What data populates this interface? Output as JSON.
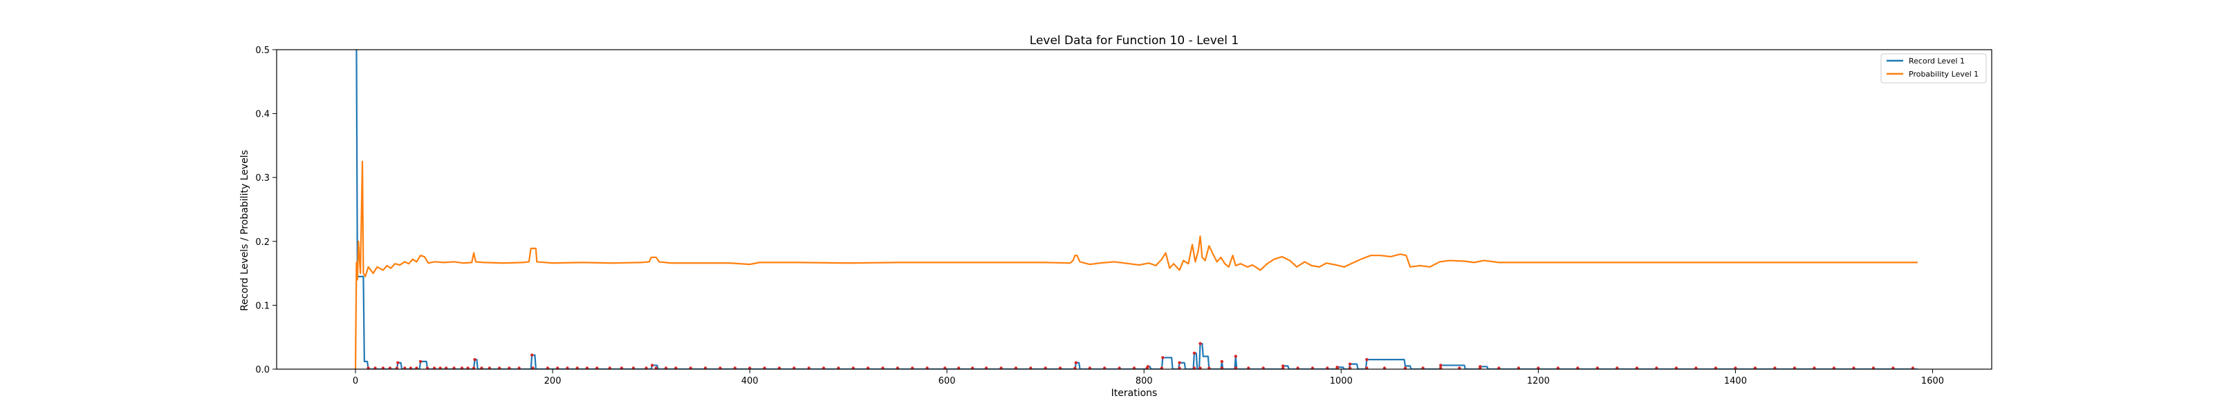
{
  "chart_data": {
    "type": "line",
    "title": "Level Data for Function 10 - Level 1",
    "xlabel": "Iterations",
    "ylabel": "Record Levels / Probability Levels",
    "xlim": [
      -80,
      1660
    ],
    "ylim": [
      0,
      0.5
    ],
    "xticks": [
      0,
      200,
      400,
      600,
      800,
      1000,
      1200,
      1400,
      1600
    ],
    "yticks": [
      0.0,
      0.1,
      0.2,
      0.3,
      0.4,
      0.5
    ],
    "grid": false,
    "legend_position": "top-right",
    "series": [
      {
        "name": "Record Level 1",
        "color": "#1f77b4",
        "step": true,
        "points": [
          [
            0,
            0.5
          ],
          [
            1,
            0.5
          ],
          [
            2,
            0.145
          ],
          [
            8,
            0.145
          ],
          [
            9,
            0.012
          ],
          [
            12,
            0.012
          ],
          [
            13,
            0
          ],
          [
            42,
            0
          ],
          [
            43,
            0.01
          ],
          [
            46,
            0.01
          ],
          [
            47,
            0
          ],
          [
            65,
            0
          ],
          [
            66,
            0.012
          ],
          [
            72,
            0.012
          ],
          [
            73,
            0
          ],
          [
            120,
            0
          ],
          [
            121,
            0.015
          ],
          [
            123,
            0.015
          ],
          [
            124,
            0
          ],
          [
            178,
            0
          ],
          [
            179,
            0.022
          ],
          [
            182,
            0.022
          ],
          [
            183,
            0
          ],
          [
            300,
            0
          ],
          [
            301,
            0.006
          ],
          [
            306,
            0.006
          ],
          [
            307,
            0
          ],
          [
            730,
            0
          ],
          [
            731,
            0.01
          ],
          [
            734,
            0.01
          ],
          [
            735,
            0
          ],
          [
            803,
            0
          ],
          [
            804,
            0.004
          ],
          [
            806,
            0.004
          ],
          [
            807,
            0
          ],
          [
            818,
            0
          ],
          [
            819,
            0.018
          ],
          [
            828,
            0.018
          ],
          [
            829,
            0
          ],
          [
            835,
            0
          ],
          [
            836,
            0.01
          ],
          [
            841,
            0.01
          ],
          [
            842,
            0
          ],
          [
            850,
            0
          ],
          [
            851,
            0.025
          ],
          [
            853,
            0.025
          ],
          [
            854,
            0
          ],
          [
            856,
            0
          ],
          [
            857,
            0.04
          ],
          [
            859,
            0.04
          ],
          [
            860,
            0.02
          ],
          [
            865,
            0.02
          ],
          [
            866,
            0
          ],
          [
            878,
            0
          ],
          [
            879,
            0.012
          ],
          [
            880,
            0
          ],
          [
            892,
            0
          ],
          [
            893,
            0.02
          ],
          [
            894,
            0
          ],
          [
            940,
            0
          ],
          [
            941,
            0.005
          ],
          [
            946,
            0.005
          ],
          [
            947,
            0
          ],
          [
            995,
            0
          ],
          [
            996,
            0.003
          ],
          [
            1002,
            0.003
          ],
          [
            1003,
            0
          ],
          [
            1008,
            0
          ],
          [
            1009,
            0.008
          ],
          [
            1016,
            0.008
          ],
          [
            1017,
            0
          ],
          [
            1025,
            0
          ],
          [
            1026,
            0.015
          ],
          [
            1064,
            0.015
          ],
          [
            1065,
            0.005
          ],
          [
            1070,
            0.005
          ],
          [
            1071,
            0
          ],
          [
            1100,
            0
          ],
          [
            1101,
            0.006
          ],
          [
            1125,
            0.006
          ],
          [
            1126,
            0
          ],
          [
            1140,
            0
          ],
          [
            1141,
            0.004
          ],
          [
            1148,
            0.004
          ],
          [
            1149,
            0
          ],
          [
            1585,
            0
          ]
        ]
      },
      {
        "name": "Probability Level 1",
        "color": "#ff7f0e",
        "step": false,
        "points": [
          [
            0,
            0
          ],
          [
            1,
            0.167
          ],
          [
            2,
            0.14
          ],
          [
            3,
            0.2
          ],
          [
            5,
            0.15
          ],
          [
            7,
            0.325
          ],
          [
            8,
            0.15
          ],
          [
            10,
            0.145
          ],
          [
            13,
            0.16
          ],
          [
            18,
            0.15
          ],
          [
            22,
            0.16
          ],
          [
            28,
            0.155
          ],
          [
            32,
            0.162
          ],
          [
            36,
            0.158
          ],
          [
            40,
            0.165
          ],
          [
            45,
            0.163
          ],
          [
            50,
            0.168
          ],
          [
            54,
            0.165
          ],
          [
            58,
            0.172
          ],
          [
            62,
            0.168
          ],
          [
            66,
            0.178
          ],
          [
            70,
            0.176
          ],
          [
            74,
            0.166
          ],
          [
            80,
            0.168
          ],
          [
            90,
            0.167
          ],
          [
            100,
            0.168
          ],
          [
            110,
            0.166
          ],
          [
            118,
            0.167
          ],
          [
            120,
            0.182
          ],
          [
            122,
            0.168
          ],
          [
            130,
            0.167
          ],
          [
            150,
            0.166
          ],
          [
            170,
            0.167
          ],
          [
            176,
            0.168
          ],
          [
            178,
            0.189
          ],
          [
            183,
            0.189
          ],
          [
            184,
            0.168
          ],
          [
            200,
            0.166
          ],
          [
            230,
            0.167
          ],
          [
            260,
            0.166
          ],
          [
            290,
            0.167
          ],
          [
            298,
            0.168
          ],
          [
            300,
            0.175
          ],
          [
            305,
            0.175
          ],
          [
            308,
            0.168
          ],
          [
            320,
            0.166
          ],
          [
            350,
            0.166
          ],
          [
            380,
            0.166
          ],
          [
            400,
            0.164
          ],
          [
            410,
            0.167
          ],
          [
            450,
            0.167
          ],
          [
            500,
            0.166
          ],
          [
            550,
            0.167
          ],
          [
            600,
            0.167
          ],
          [
            650,
            0.167
          ],
          [
            700,
            0.167
          ],
          [
            725,
            0.166
          ],
          [
            728,
            0.17
          ],
          [
            730,
            0.178
          ],
          [
            732,
            0.178
          ],
          [
            735,
            0.168
          ],
          [
            745,
            0.164
          ],
          [
            755,
            0.166
          ],
          [
            770,
            0.168
          ],
          [
            785,
            0.165
          ],
          [
            795,
            0.163
          ],
          [
            805,
            0.166
          ],
          [
            812,
            0.162
          ],
          [
            818,
            0.172
          ],
          [
            822,
            0.182
          ],
          [
            826,
            0.158
          ],
          [
            830,
            0.165
          ],
          [
            836,
            0.155
          ],
          [
            840,
            0.17
          ],
          [
            845,
            0.165
          ],
          [
            849,
            0.195
          ],
          [
            852,
            0.168
          ],
          [
            855,
            0.185
          ],
          [
            857,
            0.208
          ],
          [
            859,
            0.175
          ],
          [
            862,
            0.17
          ],
          [
            866,
            0.193
          ],
          [
            870,
            0.18
          ],
          [
            874,
            0.168
          ],
          [
            878,
            0.175
          ],
          [
            882,
            0.165
          ],
          [
            886,
            0.16
          ],
          [
            890,
            0.178
          ],
          [
            893,
            0.162
          ],
          [
            898,
            0.165
          ],
          [
            905,
            0.16
          ],
          [
            910,
            0.163
          ],
          [
            918,
            0.155
          ],
          [
            925,
            0.165
          ],
          [
            932,
            0.172
          ],
          [
            940,
            0.176
          ],
          [
            948,
            0.17
          ],
          [
            955,
            0.16
          ],
          [
            963,
            0.168
          ],
          [
            970,
            0.162
          ],
          [
            978,
            0.16
          ],
          [
            985,
            0.166
          ],
          [
            995,
            0.163
          ],
          [
            1003,
            0.16
          ],
          [
            1010,
            0.165
          ],
          [
            1020,
            0.172
          ],
          [
            1030,
            0.178
          ],
          [
            1040,
            0.178
          ],
          [
            1050,
            0.176
          ],
          [
            1060,
            0.18
          ],
          [
            1066,
            0.178
          ],
          [
            1070,
            0.16
          ],
          [
            1080,
            0.162
          ],
          [
            1090,
            0.16
          ],
          [
            1100,
            0.168
          ],
          [
            1110,
            0.17
          ],
          [
            1125,
            0.169
          ],
          [
            1135,
            0.167
          ],
          [
            1145,
            0.17
          ],
          [
            1160,
            0.167
          ],
          [
            1200,
            0.167
          ],
          [
            1300,
            0.167
          ],
          [
            1400,
            0.167
          ],
          [
            1500,
            0.167
          ],
          [
            1585,
            0.167
          ]
        ]
      }
    ],
    "markers": {
      "color": "#d62728",
      "y": 0,
      "x": [
        13,
        20,
        28,
        35,
        42,
        50,
        56,
        62,
        73,
        80,
        86,
        92,
        100,
        108,
        114,
        120,
        128,
        136,
        146,
        156,
        166,
        180,
        195,
        205,
        215,
        225,
        235,
        245,
        258,
        270,
        282,
        295,
        305,
        315,
        325,
        340,
        355,
        370,
        385,
        400,
        415,
        430,
        445,
        460,
        475,
        490,
        505,
        520,
        535,
        550,
        565,
        580,
        598,
        612,
        626,
        640,
        655,
        670,
        685,
        700,
        715,
        730,
        745,
        760,
        775,
        790,
        803,
        818,
        836,
        851,
        857,
        866,
        879,
        893,
        906,
        921,
        941,
        956,
        971,
        986,
        996,
        1009,
        1026,
        1044,
        1065,
        1083,
        1101,
        1120,
        1141,
        1160,
        1180,
        1200,
        1220,
        1240,
        1260,
        1280,
        1300,
        1320,
        1340,
        1360,
        1380,
        1400,
        1420,
        1440,
        1460,
        1480,
        1500,
        1520,
        1540,
        1560,
        1580
      ]
    }
  }
}
